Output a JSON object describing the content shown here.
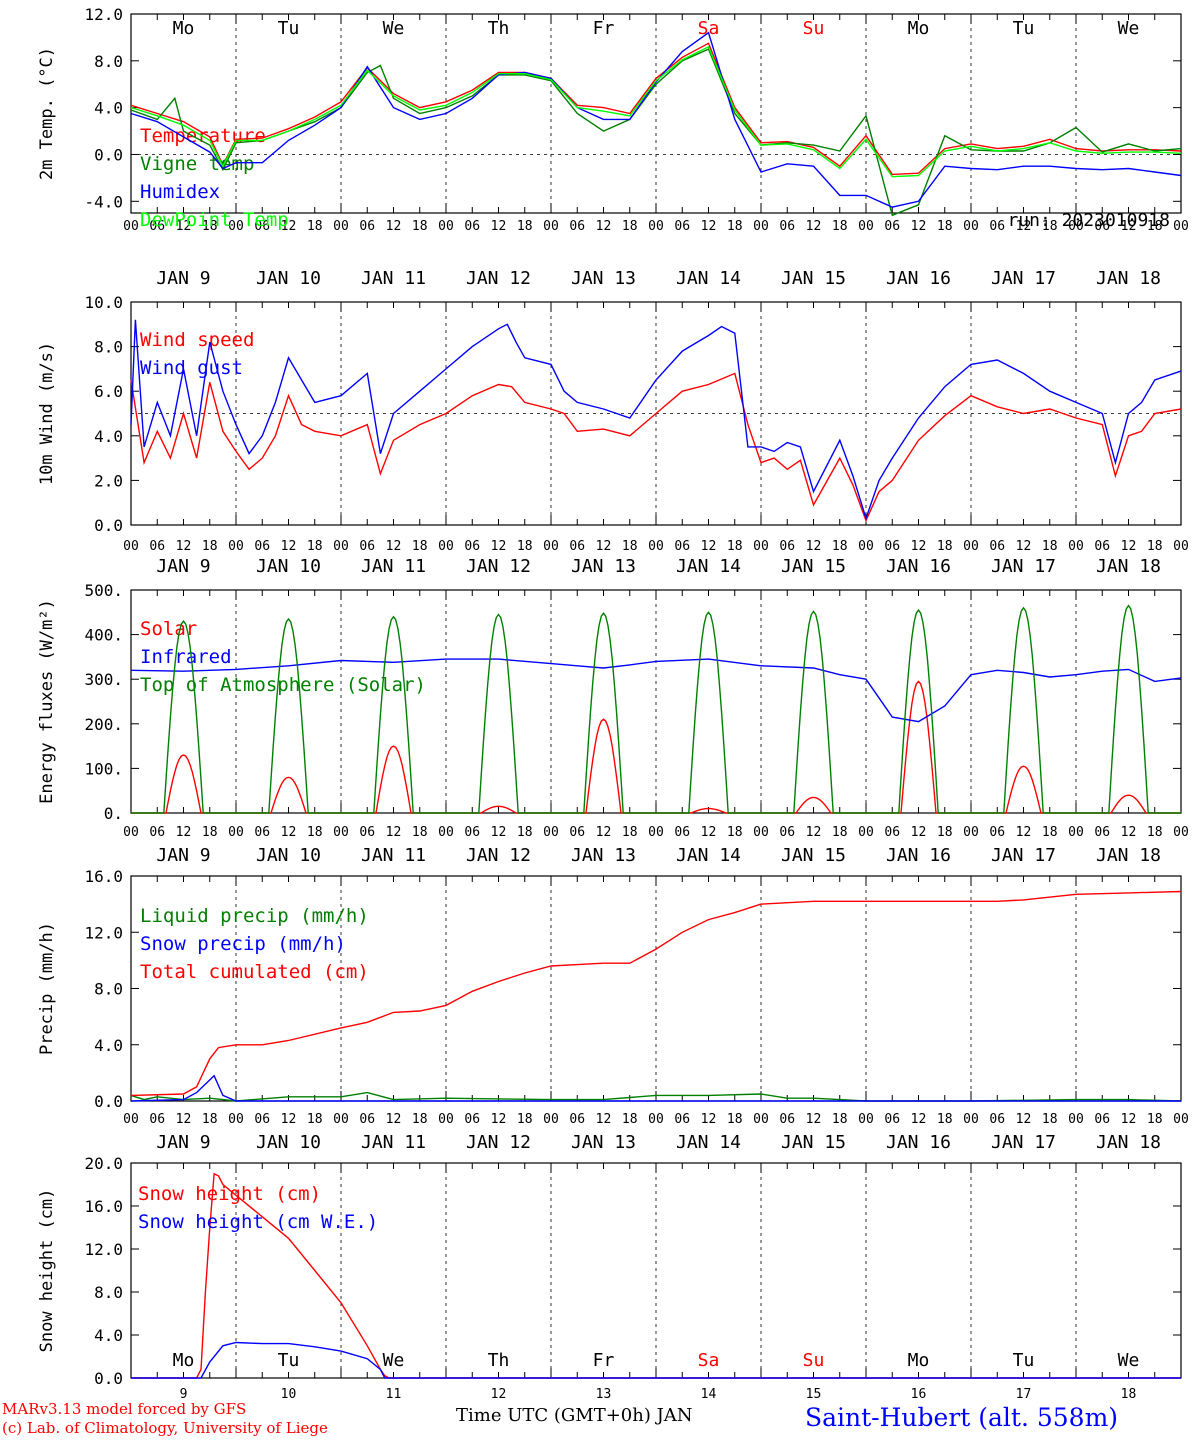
{
  "colors": {
    "red": "#ff0000",
    "green": "#008000",
    "blue": "#0000ff",
    "lime": "#00ff00",
    "black": "#000000"
  },
  "days": [
    "Mo",
    "Tu",
    "We",
    "Th",
    "Fr",
    "Sa",
    "Su",
    "Mo",
    "Tu",
    "We"
  ],
  "weekend_days": [
    "Sa",
    "Su"
  ],
  "date_labels": [
    "JAN  9",
    "JAN 10",
    "JAN 11",
    "JAN 12",
    "JAN 13",
    "JAN 14",
    "JAN 15",
    "JAN 16",
    "JAN 17",
    "JAN 18"
  ],
  "hour_ticks": [
    "00",
    "06",
    "12",
    "18"
  ],
  "snow_day_numbers": [
    "9",
    "10",
    "11",
    "12",
    "13",
    "14",
    "15",
    "16",
    "17",
    "18"
  ],
  "footer": {
    "model_line": "MARv3.13 model forced by GFS",
    "lab_line": "(c) Lab. of Climatology, University of Liege",
    "xlabel": "Time UTC (GMT+0h) JAN",
    "station": "Saint-Hubert (alt. 558m)"
  },
  "chart_data": [
    {
      "type": "line",
      "ylabel": "2m Temp. (°C)",
      "ylim": [
        -5,
        12
      ],
      "yticks": [
        "12.0",
        "8.0",
        "4.0",
        "0.0",
        "-4.0"
      ],
      "ytick_values": [
        12,
        8,
        4,
        0,
        -4
      ],
      "annotation": "run: 2023010918",
      "x_unit": "hours since 2023-01-09 00 UTC",
      "series": [
        {
          "name": "Temperature",
          "color": "#ff0000",
          "x": [
            0,
            6,
            12,
            18,
            21,
            24,
            30,
            36,
            42,
            48,
            54,
            60,
            66,
            72,
            78,
            84,
            90,
            96,
            102,
            108,
            114,
            120,
            126,
            132,
            138,
            144,
            150,
            156,
            162,
            168,
            174,
            180,
            186,
            192,
            198,
            204,
            210,
            216,
            222,
            228,
            234,
            240
          ],
          "y": [
            4.2,
            3.5,
            2.8,
            1.5,
            -0.9,
            1.3,
            1.4,
            2.2,
            3.2,
            4.5,
            7.4,
            5.2,
            4.0,
            4.5,
            5.5,
            7.0,
            7.0,
            6.5,
            4.2,
            4.0,
            3.5,
            6.5,
            8.3,
            9.5,
            4.0,
            1.0,
            1.1,
            0.6,
            -1.0,
            1.6,
            -1.7,
            -1.6,
            0.5,
            0.9,
            0.5,
            0.7,
            1.3,
            0.5,
            0.3,
            0.4,
            0.4,
            0.3
          ]
        },
        {
          "name": "Vigne temp",
          "color": "#008000",
          "x": [
            0,
            6,
            10,
            12,
            18,
            21,
            24,
            30,
            36,
            42,
            48,
            54,
            57,
            60,
            66,
            72,
            78,
            84,
            90,
            96,
            102,
            108,
            114,
            120,
            126,
            132,
            138,
            144,
            150,
            156,
            162,
            168,
            174,
            180,
            186,
            192,
            198,
            204,
            210,
            216,
            222,
            228,
            234,
            240
          ],
          "y": [
            3.8,
            3.0,
            4.8,
            2.0,
            0.8,
            -1.3,
            1.0,
            1.2,
            2.0,
            2.8,
            4.0,
            7.0,
            7.6,
            4.8,
            3.5,
            4.0,
            5.0,
            6.8,
            6.8,
            6.3,
            3.5,
            2.0,
            3.0,
            6.0,
            8.0,
            9.0,
            3.5,
            0.8,
            1.0,
            0.8,
            0.3,
            3.3,
            -5.2,
            -4.3,
            1.6,
            0.4,
            0.3,
            0.3,
            1.0,
            2.3,
            0.2,
            0.9,
            0.3,
            0.5
          ]
        },
        {
          "name": "Humidex",
          "color": "#0000ff",
          "x": [
            0,
            6,
            12,
            18,
            21,
            24,
            30,
            36,
            42,
            48,
            54,
            60,
            66,
            72,
            78,
            84,
            90,
            96,
            102,
            108,
            114,
            120,
            126,
            132,
            138,
            144,
            150,
            156,
            162,
            168,
            174,
            180,
            186,
            192,
            198,
            204,
            210,
            216,
            222,
            228,
            234,
            240
          ],
          "y": [
            3.5,
            2.8,
            1.5,
            0.2,
            -1.2,
            -0.7,
            -0.7,
            1.2,
            2.5,
            4.0,
            7.5,
            4.0,
            3.0,
            3.5,
            4.8,
            6.8,
            7.0,
            6.5,
            4.0,
            3.0,
            3.0,
            6.2,
            8.8,
            10.4,
            3.0,
            -1.5,
            -0.8,
            -1.0,
            -3.5,
            -3.5,
            -4.5,
            -4.0,
            -1.0,
            -1.2,
            -1.3,
            -1.0,
            -1.0,
            -1.2,
            -1.3,
            -1.2,
            -1.5,
            -1.8
          ]
        },
        {
          "name": "DewPoint Temp",
          "color": "#00ff00",
          "x": [
            0,
            6,
            12,
            18,
            21,
            24,
            30,
            36,
            42,
            48,
            54,
            60,
            66,
            72,
            78,
            84,
            90,
            96,
            102,
            108,
            114,
            120,
            126,
            132,
            138,
            144,
            150,
            156,
            162,
            168,
            174,
            180,
            186,
            192,
            198,
            204,
            210,
            216,
            222,
            228,
            234,
            240
          ],
          "y": [
            4.0,
            3.3,
            2.5,
            1.2,
            -1.0,
            1.2,
            1.2,
            2.0,
            3.0,
            4.2,
            7.2,
            5.0,
            3.8,
            4.2,
            5.3,
            6.9,
            6.9,
            6.4,
            4.0,
            3.7,
            3.3,
            6.3,
            8.1,
            9.2,
            3.8,
            0.8,
            0.9,
            0.4,
            -1.2,
            1.3,
            -1.9,
            -1.8,
            0.3,
            0.7,
            0.3,
            0.5,
            1.0,
            0.3,
            0.1,
            0.2,
            0.2,
            0.1
          ]
        }
      ]
    },
    {
      "type": "line",
      "ylabel": "10m Wind (m/s)",
      "ylim": [
        0,
        10
      ],
      "yticks": [
        "10.0",
        "8.0",
        "6.0",
        "4.0",
        "2.0",
        "0.0"
      ],
      "ytick_values": [
        10,
        8,
        6,
        4,
        2,
        0
      ],
      "reference_line": 5,
      "x_unit": "hours since 2023-01-09 00 UTC",
      "series": [
        {
          "name": "Wind speed",
          "color": "#ff0000",
          "x": [
            0,
            3,
            6,
            9,
            12,
            15,
            18,
            21,
            24,
            27,
            30,
            33,
            36,
            39,
            42,
            48,
            54,
            57,
            60,
            66,
            72,
            78,
            84,
            87,
            90,
            96,
            99,
            102,
            108,
            114,
            120,
            126,
            132,
            138,
            141,
            144,
            147,
            150,
            153,
            156,
            162,
            165,
            168,
            171,
            174,
            180,
            186,
            192,
            198,
            204,
            210,
            216,
            222,
            225,
            228,
            231,
            234,
            240
          ],
          "y": [
            6.5,
            2.8,
            4.2,
            3.0,
            5.0,
            3.0,
            6.4,
            4.2,
            3.3,
            2.5,
            3.0,
            4.0,
            5.8,
            4.5,
            4.2,
            4.0,
            4.5,
            2.3,
            3.8,
            4.5,
            5.0,
            5.8,
            6.3,
            6.2,
            5.5,
            5.2,
            5.0,
            4.2,
            4.3,
            4.0,
            5.0,
            6.0,
            6.3,
            6.8,
            4.5,
            2.8,
            3.0,
            2.5,
            2.9,
            0.9,
            3.0,
            1.8,
            0.2,
            1.5,
            2.0,
            3.8,
            4.9,
            5.8,
            5.3,
            5.0,
            5.2,
            4.8,
            4.5,
            2.2,
            4.0,
            4.2,
            5.0,
            5.2
          ]
        },
        {
          "name": "Wind gust",
          "color": "#0000ff",
          "x": [
            0,
            1,
            3,
            6,
            9,
            12,
            15,
            18,
            21,
            24,
            27,
            30,
            33,
            36,
            39,
            42,
            48,
            54,
            57,
            60,
            66,
            72,
            78,
            84,
            86,
            88,
            90,
            96,
            99,
            102,
            108,
            114,
            120,
            126,
            132,
            135,
            138,
            141,
            144,
            147,
            150,
            153,
            156,
            162,
            165,
            168,
            171,
            174,
            180,
            186,
            192,
            198,
            204,
            210,
            216,
            222,
            225,
            228,
            231,
            234,
            240
          ],
          "y": [
            4.5,
            9.2,
            3.5,
            5.5,
            4.0,
            7.0,
            4.0,
            8.2,
            6.0,
            4.5,
            3.2,
            4.0,
            5.5,
            7.5,
            6.5,
            5.5,
            5.8,
            6.8,
            3.2,
            5.0,
            6.0,
            7.0,
            8.0,
            8.8,
            9.0,
            8.2,
            7.5,
            7.2,
            6.0,
            5.5,
            5.2,
            4.8,
            6.5,
            7.8,
            8.5,
            8.9,
            8.6,
            3.5,
            3.5,
            3.3,
            3.7,
            3.5,
            1.5,
            3.8,
            2.2,
            0.3,
            2.0,
            3.0,
            4.8,
            6.2,
            7.2,
            7.4,
            6.8,
            6.0,
            5.5,
            5.0,
            2.8,
            5.0,
            5.5,
            6.5,
            6.9
          ]
        }
      ]
    },
    {
      "type": "line",
      "ylabel": "Energy fluxes (W/m²)",
      "ylim": [
        0,
        500
      ],
      "yticks": [
        "500.",
        "400.",
        "300.",
        "200.",
        "100.",
        "0."
      ],
      "ytick_values": [
        500,
        400,
        300,
        200,
        100,
        0
      ],
      "x_unit": "hours since 2023-01-09 00 UTC",
      "series": [
        {
          "name": "Solar",
          "color": "#ff0000",
          "peaks": [
            130,
            80,
            150,
            15,
            210,
            10,
            35,
            295,
            105,
            40
          ]
        },
        {
          "name": "Infrared",
          "color": "#0000ff",
          "x": [
            0,
            12,
            24,
            36,
            48,
            60,
            72,
            84,
            96,
            102,
            108,
            114,
            120,
            132,
            144,
            156,
            162,
            168,
            174,
            180,
            186,
            192,
            198,
            204,
            210,
            216,
            222,
            228,
            234,
            240
          ],
          "y": [
            320,
            318,
            322,
            330,
            342,
            338,
            345,
            345,
            335,
            330,
            325,
            332,
            340,
            345,
            330,
            325,
            310,
            300,
            215,
            205,
            240,
            310,
            320,
            315,
            305,
            310,
            318,
            322,
            295,
            303
          ]
        },
        {
          "name": "Top of Atmosphere (Solar)",
          "color": "#008000",
          "peaks": [
            430,
            435,
            440,
            445,
            448,
            450,
            452,
            455,
            460,
            465
          ]
        }
      ]
    },
    {
      "type": "line",
      "ylabel": "Precip (mm/h)",
      "ylim": [
        0,
        16
      ],
      "yticks": [
        "16.0",
        "12.0",
        "8.0",
        "4.0",
        "0.0"
      ],
      "ytick_values": [
        16,
        12,
        8,
        4,
        0
      ],
      "x_unit": "hours since 2023-01-09 00 UTC",
      "series": [
        {
          "name": "Liquid precip (mm/h)",
          "color": "#008000",
          "x": [
            0,
            3,
            6,
            12,
            18,
            24,
            36,
            48,
            54,
            60,
            72,
            96,
            108,
            120,
            132,
            144,
            150,
            156,
            168,
            192,
            216,
            228,
            240
          ],
          "y": [
            0.4,
            0.1,
            0.3,
            0.1,
            0.2,
            0.0,
            0.3,
            0.3,
            0.6,
            0.1,
            0.2,
            0.1,
            0.1,
            0.4,
            0.4,
            0.5,
            0.2,
            0.2,
            0.0,
            0.0,
            0.1,
            0.1,
            0.0
          ]
        },
        {
          "name": "Snow precip (mm/h)",
          "color": "#0000ff",
          "x": [
            0,
            12,
            15,
            18,
            19,
            21,
            24,
            30,
            240
          ],
          "y": [
            0.0,
            0.1,
            0.6,
            1.5,
            1.8,
            0.4,
            0.0,
            0.0,
            0.0
          ]
        },
        {
          "name": "Total cumulated (cm)",
          "color": "#ff0000",
          "x": [
            0,
            12,
            15,
            18,
            20,
            24,
            30,
            36,
            48,
            54,
            60,
            66,
            72,
            78,
            84,
            90,
            96,
            102,
            108,
            114,
            120,
            126,
            132,
            138,
            144,
            156,
            168,
            192,
            198,
            204,
            216,
            228,
            240
          ],
          "y": [
            0.4,
            0.5,
            1.0,
            3.0,
            3.8,
            4.0,
            4.0,
            4.3,
            5.2,
            5.6,
            6.3,
            6.4,
            6.8,
            7.8,
            8.5,
            9.1,
            9.6,
            9.7,
            9.8,
            9.8,
            10.8,
            12.0,
            12.9,
            13.4,
            14.0,
            14.2,
            14.2,
            14.2,
            14.2,
            14.3,
            14.7,
            14.8,
            14.9
          ]
        }
      ]
    },
    {
      "type": "line",
      "ylabel": "Snow height (cm)",
      "ylim": [
        0,
        20
      ],
      "yticks": [
        "20.0",
        "16.0",
        "12.0",
        "8.0",
        "4.0",
        "0.0"
      ],
      "ytick_values": [
        20,
        16,
        12,
        8,
        4,
        0
      ],
      "x_unit": "hours since 2023-01-09 00 UTC",
      "series": [
        {
          "name": "Snow height (cm)",
          "color": "#ff0000",
          "x": [
            0,
            15,
            16,
            17,
            18,
            19,
            20,
            21,
            24,
            30,
            36,
            42,
            48,
            54,
            57,
            58,
            59,
            240
          ],
          "y": [
            0,
            0,
            0.8,
            8.0,
            14.0,
            19.0,
            18.8,
            18.0,
            17.0,
            15.0,
            13.0,
            10.0,
            7.0,
            3.0,
            0.8,
            0.2,
            0,
            0
          ]
        },
        {
          "name": "Snow height (cm W.E.)",
          "color": "#0000ff",
          "x": [
            0,
            16,
            18,
            21,
            24,
            30,
            36,
            42,
            48,
            54,
            57,
            58,
            240
          ],
          "y": [
            0,
            0,
            1.5,
            3.0,
            3.3,
            3.2,
            3.2,
            2.9,
            2.5,
            1.8,
            0.8,
            0,
            0
          ]
        }
      ]
    }
  ]
}
